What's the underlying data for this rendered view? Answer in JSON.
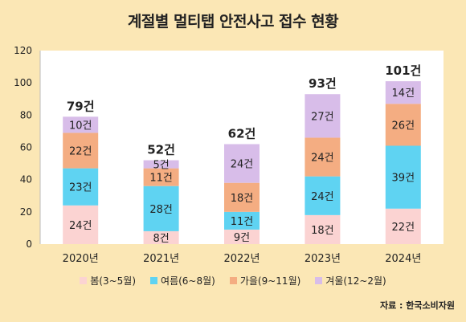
{
  "title": "계절별 멀티탭 안전사고 접수 현황",
  "source": "자료 : 한국소비자원",
  "colors": {
    "background": "#fbe7b5",
    "spring": "#fbd3d2",
    "summer": "#5fd3f2",
    "autumn": "#f4ad82",
    "winter": "#d8bde9"
  },
  "chart_data": {
    "type": "bar",
    "stacked": true,
    "categories": [
      "2020년",
      "2021년",
      "2022년",
      "2023년",
      "2024년"
    ],
    "series": [
      {
        "name": "봄(3~5월)",
        "values": [
          24,
          8,
          9,
          18,
          22
        ],
        "labels": [
          "24건",
          "8건",
          "9건",
          "18건",
          "22건"
        ]
      },
      {
        "name": "여름(6~8월)",
        "values": [
          23,
          28,
          11,
          24,
          39
        ],
        "labels": [
          "23건",
          "28건",
          "11건",
          "24건",
          "39건"
        ]
      },
      {
        "name": "가을(9~11월)",
        "values": [
          22,
          11,
          18,
          24,
          26
        ],
        "labels": [
          "22건",
          "11건",
          "18건",
          "24건",
          "26건"
        ]
      },
      {
        "name": "겨울(12~2월)",
        "values": [
          10,
          5,
          24,
          27,
          14
        ],
        "labels": [
          "10건",
          "5건",
          "24건",
          "27건",
          "14건"
        ]
      }
    ],
    "totals": [
      79,
      52,
      62,
      93,
      101
    ],
    "total_labels": [
      "79건",
      "52건",
      "62건",
      "93건",
      "101건"
    ],
    "ylim": [
      0,
      120
    ],
    "yticks": [
      "0",
      "20",
      "40",
      "60",
      "80",
      "100",
      "120"
    ],
    "grid": false,
    "legend": "bottom"
  }
}
